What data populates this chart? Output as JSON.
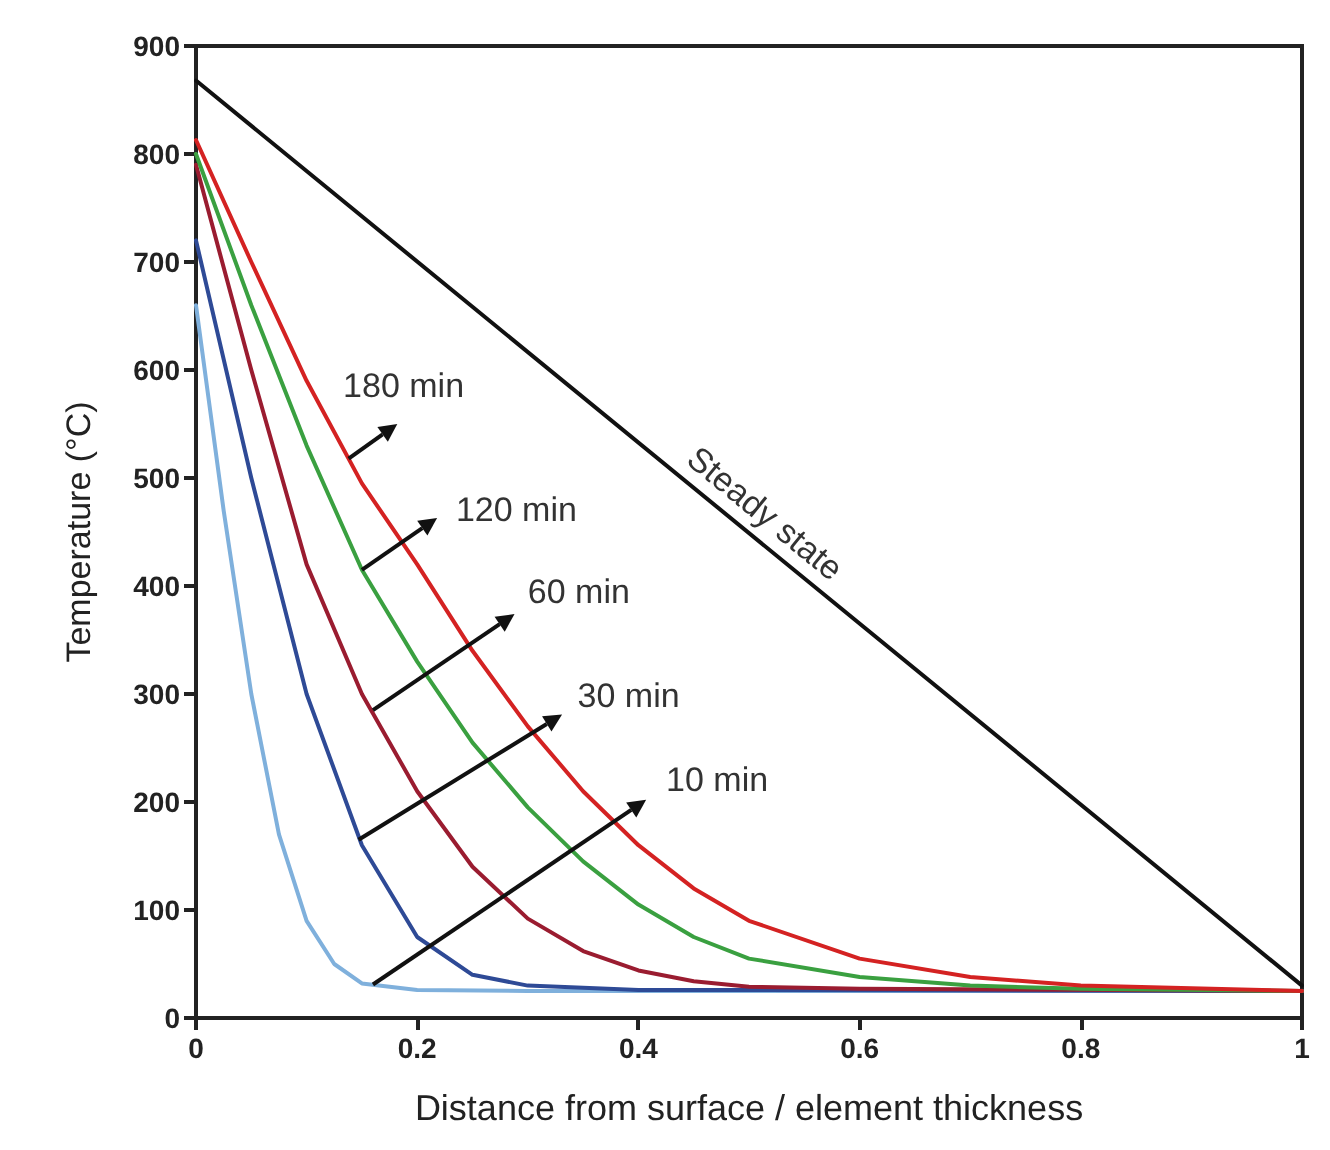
{
  "chart_data": {
    "type": "line",
    "xlabel": "Distance from surface / element thickness",
    "ylabel": "Temperature (°C)",
    "xlim": [
      0,
      1
    ],
    "xticks": [
      0,
      0.2,
      0.4,
      0.6,
      0.8,
      1
    ],
    "ylim": [
      0,
      900
    ],
    "yticks": [
      0,
      100,
      200,
      300,
      400,
      500,
      600,
      700,
      800,
      900
    ],
    "grid": false,
    "marker": "none",
    "line_style": "solid",
    "series": [
      {
        "color": "#7fb0dc",
        "x": [
          0,
          0.025,
          0.05,
          0.075,
          0.1,
          0.125,
          0.15,
          0.2,
          0.3,
          1
        ],
        "values": [
          660,
          470,
          300,
          170,
          90,
          50,
          32,
          26,
          25,
          25
        ]
      },
      {
        "color": "#2e4a96",
        "x": [
          0,
          0.05,
          0.1,
          0.15,
          0.2,
          0.25,
          0.3,
          0.4,
          1
        ],
        "values": [
          720,
          500,
          300,
          160,
          75,
          40,
          30,
          26,
          25
        ]
      },
      {
        "color": "#9a1c30",
        "x": [
          0,
          0.05,
          0.1,
          0.15,
          0.2,
          0.25,
          0.3,
          0.35,
          0.4,
          0.45,
          0.5,
          0.6,
          1
        ],
        "values": [
          790,
          600,
          420,
          300,
          210,
          140,
          92,
          62,
          44,
          34,
          29,
          27,
          25
        ]
      },
      {
        "color": "#3aa040",
        "x": [
          0,
          0.05,
          0.1,
          0.15,
          0.2,
          0.25,
          0.3,
          0.35,
          0.4,
          0.45,
          0.5,
          0.6,
          0.7,
          0.8,
          1
        ],
        "values": [
          800,
          660,
          530,
          415,
          330,
          255,
          195,
          145,
          105,
          75,
          55,
          38,
          30,
          27,
          25
        ]
      },
      {
        "color": "#d42222",
        "x": [
          0,
          0.05,
          0.1,
          0.15,
          0.2,
          0.25,
          0.3,
          0.35,
          0.4,
          0.45,
          0.5,
          0.6,
          0.7,
          0.8,
          1
        ],
        "values": [
          813,
          700,
          590,
          495,
          420,
          340,
          270,
          210,
          160,
          120,
          90,
          55,
          38,
          30,
          25
        ]
      },
      {
        "color": "#111111",
        "x": [
          0,
          1
        ],
        "values": [
          868,
          30
        ]
      }
    ],
    "annotations": [
      {
        "text": "180 min",
        "x": 0.138,
        "y": 518
      },
      {
        "text": "120 min",
        "x": 0.15,
        "y": 415
      },
      {
        "text": "60 min",
        "x": 0.16,
        "y": 285
      },
      {
        "text": "30 min",
        "x": 0.147,
        "y": 165
      },
      {
        "text": "10 min",
        "x": 0.16,
        "y": 31
      },
      {
        "text": "Steady state",
        "x": 0.5,
        "y": 449
      }
    ]
  }
}
